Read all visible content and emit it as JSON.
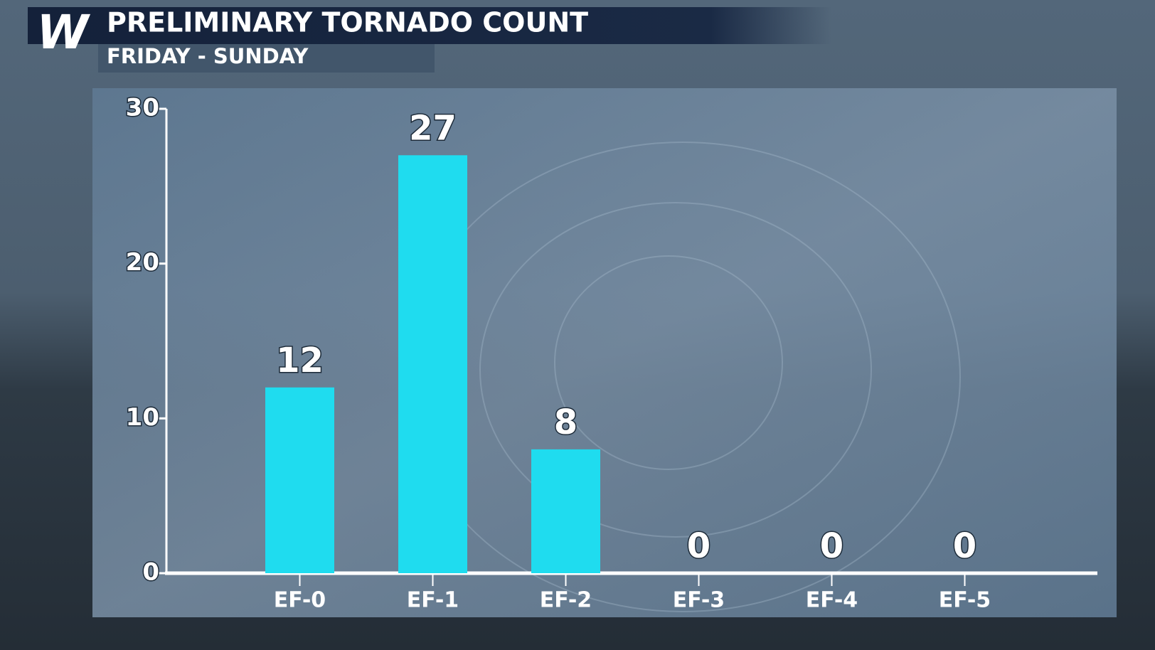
{
  "brand": "W",
  "chart_data": {
    "type": "bar",
    "title": "PRELIMINARY TORNADO COUNT",
    "subtitle": "FRIDAY - SUNDAY",
    "categories": [
      "EF-0",
      "EF-1",
      "EF-2",
      "EF-3",
      "EF-4",
      "EF-5"
    ],
    "values": [
      12,
      27,
      8,
      0,
      0,
      0
    ],
    "color": "#22dff0",
    "ylim": [
      0,
      30
    ],
    "yticks": [
      0,
      10,
      20,
      30
    ],
    "grid": false
  }
}
